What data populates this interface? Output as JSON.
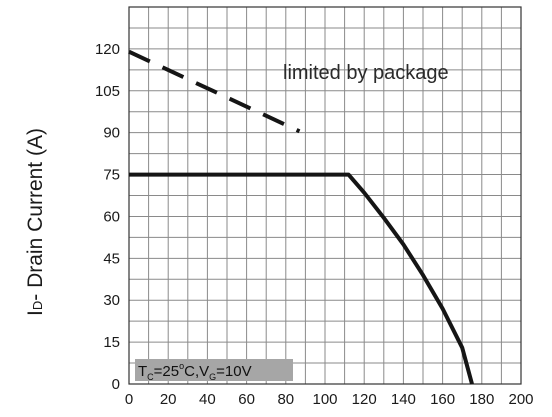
{
  "chart_data": {
    "type": "line",
    "title": "",
    "xlabel": "",
    "ylabel": "ID- Drain Current (A)",
    "ylabel_prefix": "I",
    "ylabel_sub": "D",
    "ylabel_rest": "- Drain Current (A)",
    "xlim": [
      0,
      200
    ],
    "ylim": [
      0,
      135
    ],
    "x_ticks": [
      "0",
      "20",
      "40",
      "60",
      "80",
      "100",
      "120",
      "140",
      "160",
      "180",
      "200"
    ],
    "x_tick_values": [
      0,
      20,
      40,
      60,
      80,
      100,
      120,
      140,
      160,
      180,
      200
    ],
    "y_ticks": [
      "0",
      "15",
      "30",
      "45",
      "60",
      "75",
      "90",
      "105",
      "120"
    ],
    "y_tick_values": [
      0,
      15,
      30,
      45,
      60,
      75,
      90,
      105,
      120
    ],
    "grid_x_step": 10,
    "grid_y_step": 7.5,
    "grid": true,
    "series": [
      {
        "style": "dashed",
        "x": [
          0,
          87
        ],
        "y": [
          119,
          90.5
        ]
      },
      {
        "style": "solid",
        "x": [
          0,
          112,
          120,
          130,
          140,
          150,
          160,
          170,
          175
        ],
        "y": [
          75,
          75,
          68.5,
          59.5,
          50,
          39,
          27,
          13,
          0
        ]
      }
    ],
    "annotations": {
      "limited": "limited by package",
      "condition": {
        "t": "T",
        "t_sub": "C",
        "mid": "=25",
        "deg": "o",
        "mid2": "C,V",
        "v_sub": "G",
        "end": "=10V"
      }
    },
    "colors": {
      "line": "#151515",
      "grid": "#8a8a8a",
      "condition_box": "#a6a6a6"
    }
  }
}
